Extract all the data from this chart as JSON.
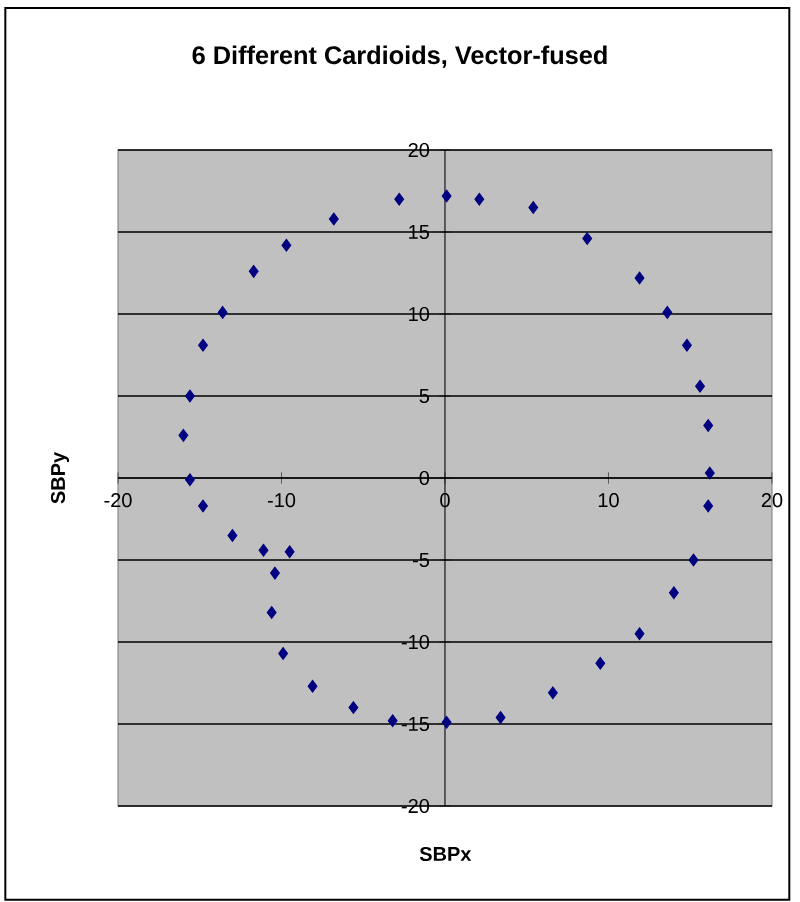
{
  "chart_data": {
    "type": "scatter",
    "title": "6 Different Cardioids, Vector-fused",
    "xlabel": "SBPx",
    "ylabel": "SBPy",
    "xlim": [
      -20,
      20
    ],
    "ylim": [
      -20,
      20
    ],
    "xticks": [
      -20,
      -10,
      0,
      10,
      20
    ],
    "yticks": [
      -20,
      -15,
      -10,
      -5,
      0,
      5,
      10,
      15,
      20
    ],
    "grid": "y",
    "marker": "diamond",
    "series": [
      {
        "color": "#000080",
        "x": [
          -9.5,
          -11.1,
          -13.0,
          -14.8,
          -15.6,
          -16.0,
          -15.6,
          -14.8,
          -13.6,
          -11.7,
          -9.7,
          -6.8,
          -2.8,
          0.1,
          2.1,
          5.4,
          8.7,
          11.9,
          13.6,
          14.8,
          15.6,
          16.1,
          16.2,
          16.1,
          15.2,
          14.0,
          11.9,
          9.5,
          6.6,
          3.4,
          0.1,
          -3.2,
          -5.6,
          -8.1,
          -9.9,
          -10.6,
          -10.4
        ],
        "values": [
          -4.5,
          -4.4,
          -3.5,
          -1.7,
          -0.1,
          2.6,
          5.0,
          8.1,
          10.1,
          12.6,
          14.2,
          15.8,
          17.0,
          17.2,
          17.0,
          16.5,
          14.6,
          12.2,
          10.1,
          8.1,
          5.6,
          3.2,
          0.3,
          -1.7,
          -5.0,
          -7.0,
          -9.5,
          -11.3,
          -13.1,
          -14.6,
          -14.9,
          -14.8,
          -14.0,
          -12.7,
          -10.7,
          -8.2,
          -5.8
        ]
      }
    ]
  }
}
